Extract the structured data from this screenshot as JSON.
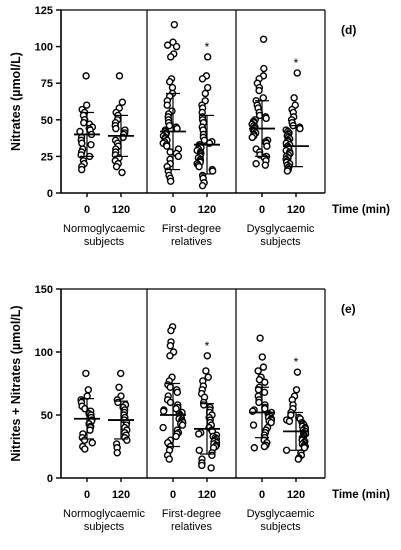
{
  "chart_data": [
    {
      "type": "scatter",
      "panel_label": "(d)",
      "ylabel": "Nitrates (µmol/L)",
      "xlabel": "Time (min)",
      "ylim": [
        0,
        125
      ],
      "yticks": [
        0,
        25,
        50,
        75,
        100,
        125
      ],
      "categories": [
        "0",
        "120"
      ],
      "groups": [
        {
          "name": "Normoglycaemic subjects",
          "name_lines": [
            "Normoglycaemic",
            "subjects"
          ],
          "series": [
            {
              "time": "0",
              "mean": 40,
              "sd": 15,
              "significant": false,
              "marker": "",
              "values": [
                80,
                60,
                57,
                55,
                53,
                50,
                48,
                47,
                45,
                44,
                43,
                42,
                40,
                38,
                36,
                34,
                33,
                30,
                28,
                26,
                25,
                22,
                20,
                18,
                16
              ]
            },
            {
              "time": "120",
              "mean": 39,
              "sd": 14,
              "significant": false,
              "marker": "",
              "values": [
                80,
                62,
                58,
                55,
                53,
                50,
                48,
                46,
                44,
                43,
                41,
                40,
                38,
                36,
                34,
                32,
                30,
                28,
                26,
                24,
                22,
                20,
                18,
                14
              ]
            }
          ]
        },
        {
          "name": "First-degree relatives",
          "name_lines": [
            "First-degree",
            "relatives"
          ],
          "series": [
            {
              "time": "0",
              "mean": 42,
              "sd": 26,
              "significant": false,
              "marker": "",
              "values": [
                115,
                103,
                101,
                100,
                95,
                93,
                78,
                76,
                72,
                68,
                66,
                63,
                60,
                56,
                54,
                52,
                50,
                48,
                46,
                45,
                44,
                43,
                42,
                41,
                40,
                39,
                38,
                37,
                36,
                35,
                34,
                33,
                32,
                30,
                28,
                27,
                25,
                23,
                20,
                18,
                15,
                12,
                10,
                8
              ]
            },
            {
              "time": "120",
              "mean": 33,
              "sd": 20,
              "significant": true,
              "marker": "*",
              "values": [
                93,
                80,
                78,
                72,
                68,
                63,
                60,
                58,
                55,
                52,
                50,
                48,
                45,
                43,
                40,
                38,
                36,
                35,
                34,
                33,
                32,
                31,
                30,
                29,
                28,
                27,
                26,
                25,
                24,
                23,
                22,
                21,
                20,
                19,
                18,
                16,
                15,
                12,
                10,
                7,
                5
              ]
            }
          ]
        },
        {
          "name": "Dysglycaemic subjects",
          "name_lines": [
            "Dysglycaemic",
            "subjects"
          ],
          "series": [
            {
              "time": "0",
              "mean": 44,
              "sd": 19,
              "significant": false,
              "marker": "",
              "values": [
                105,
                85,
                80,
                78,
                75,
                72,
                70,
                65,
                63,
                60,
                58,
                55,
                53,
                52,
                51,
                50,
                49,
                48,
                47,
                46,
                45,
                44,
                43,
                42,
                41,
                40,
                39,
                38,
                36,
                35,
                34,
                32,
                30,
                28,
                26,
                25,
                24,
                22,
                20,
                19
              ]
            },
            {
              "time": "120",
              "mean": 32,
              "sd": 14,
              "significant": true,
              "marker": "*",
              "values": [
                82,
                65,
                60,
                57,
                55,
                52,
                50,
                48,
                46,
                45,
                44,
                43,
                42,
                41,
                40,
                39,
                38,
                37,
                36,
                35,
                34,
                33,
                32,
                31,
                30,
                29,
                28,
                27,
                26,
                25,
                24,
                23,
                22,
                21,
                20,
                19,
                18,
                17,
                16,
                15
              ]
            }
          ]
        }
      ]
    },
    {
      "type": "scatter",
      "panel_label": "(e)",
      "ylabel": "Nitrites + Nitrates (µmol/L)",
      "xlabel": "Time (min)",
      "ylim": [
        0,
        150
      ],
      "yticks": [
        0,
        50,
        100,
        150
      ],
      "categories": [
        "0",
        "120"
      ],
      "groups": [
        {
          "name": "Normoglycaemic subjects",
          "name_lines": [
            "Normoglycaemic",
            "subjects"
          ],
          "series": [
            {
              "time": "0",
              "mean": 47,
              "sd": 16,
              "significant": false,
              "marker": "",
              "values": [
                83,
                70,
                65,
                62,
                60,
                57,
                55,
                53,
                51,
                50,
                48,
                46,
                45,
                43,
                41,
                40,
                38,
                35,
                32,
                30,
                28,
                25,
                23
              ]
            },
            {
              "time": "120",
              "mean": 46,
              "sd": 15,
              "significant": false,
              "marker": "",
              "values": [
                83,
                72,
                65,
                62,
                60,
                58,
                56,
                54,
                52,
                50,
                48,
                46,
                44,
                42,
                40,
                38,
                36,
                34,
                32,
                30,
                27,
                24,
                20
              ]
            }
          ]
        },
        {
          "name": "First-degree relatives",
          "name_lines": [
            "First-degree",
            "relatives"
          ],
          "series": [
            {
              "time": "0",
              "mean": 50,
              "sd": 25,
              "significant": false,
              "marker": "",
              "values": [
                120,
                117,
                108,
                105,
                100,
                97,
                80,
                77,
                74,
                72,
                70,
                68,
                65,
                62,
                60,
                58,
                56,
                55,
                54,
                53,
                52,
                51,
                50,
                49,
                48,
                47,
                46,
                45,
                44,
                43,
                42,
                40,
                38,
                36,
                35,
                33,
                30,
                28,
                25,
                22,
                18,
                15
              ]
            },
            {
              "time": "120",
              "mean": 39,
              "sd": 20,
              "significant": true,
              "marker": "*",
              "values": [
                97,
                85,
                80,
                77,
                73,
                70,
                67,
                64,
                60,
                58,
                56,
                54,
                52,
                50,
                48,
                46,
                44,
                42,
                40,
                38,
                37,
                36,
                35,
                34,
                33,
                32,
                31,
                30,
                29,
                28,
                27,
                26,
                25,
                24,
                22,
                20,
                18,
                15,
                12,
                10,
                8
              ]
            }
          ]
        },
        {
          "name": "Dysglycaemic subjects",
          "name_lines": [
            "Dysglycaemic",
            "subjects"
          ],
          "series": [
            {
              "time": "0",
              "mean": 52,
              "sd": 20,
              "significant": false,
              "marker": "",
              "values": [
                111,
                96,
                88,
                85,
                80,
                78,
                76,
                72,
                70,
                68,
                65,
                62,
                60,
                58,
                56,
                55,
                54,
                53,
                52,
                51,
                50,
                49,
                48,
                47,
                46,
                45,
                44,
                42,
                40,
                38,
                36,
                34,
                32,
                30,
                28,
                26,
                25,
                24
              ]
            },
            {
              "time": "120",
              "mean": 37,
              "sd": 15,
              "significant": true,
              "marker": "*",
              "values": [
                84,
                70,
                65,
                62,
                58,
                55,
                52,
                50,
                48,
                47,
                46,
                45,
                44,
                43,
                42,
                41,
                40,
                39,
                38,
                37,
                36,
                35,
                34,
                33,
                32,
                31,
                30,
                29,
                28,
                27,
                26,
                25,
                24,
                22,
                20,
                18,
                16,
                15
              ]
            }
          ]
        }
      ]
    }
  ]
}
